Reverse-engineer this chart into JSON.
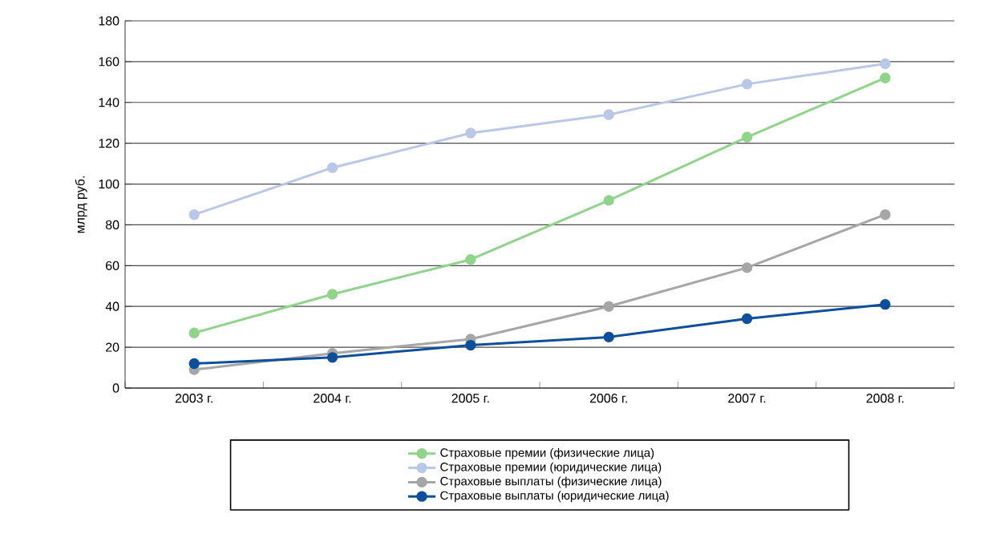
{
  "chart_data": {
    "type": "line",
    "ylabel": "млрд руб.",
    "categories": [
      "2003 г.",
      "2004 г.",
      "2005 г.",
      "2006 г.",
      "2007 г.",
      "2008 г."
    ],
    "ylim": [
      0,
      180
    ],
    "yticks": [
      0,
      20,
      40,
      60,
      80,
      100,
      120,
      140,
      160,
      180
    ],
    "grid": "y",
    "legend": "bottom",
    "marker": "circle",
    "line_style": "solid",
    "series": [
      {
        "name": "Страховые премии (физические лица)",
        "color": "#8fd48a",
        "values": [
          27,
          46,
          63,
          92,
          123,
          152
        ]
      },
      {
        "name": "Страховые премии (юридические лица)",
        "color": "#b8c8e6",
        "values": [
          85,
          108,
          125,
          134,
          149,
          159
        ]
      },
      {
        "name": "Страховые  выплаты (физические лица)",
        "color": "#a6a6a6",
        "values": [
          9,
          17,
          24,
          40,
          59,
          85
        ]
      },
      {
        "name": "Страховые выплаты (юридические лица)",
        "color": "#0d4f9c",
        "values": [
          12,
          15,
          21,
          25,
          34,
          41
        ]
      }
    ]
  }
}
